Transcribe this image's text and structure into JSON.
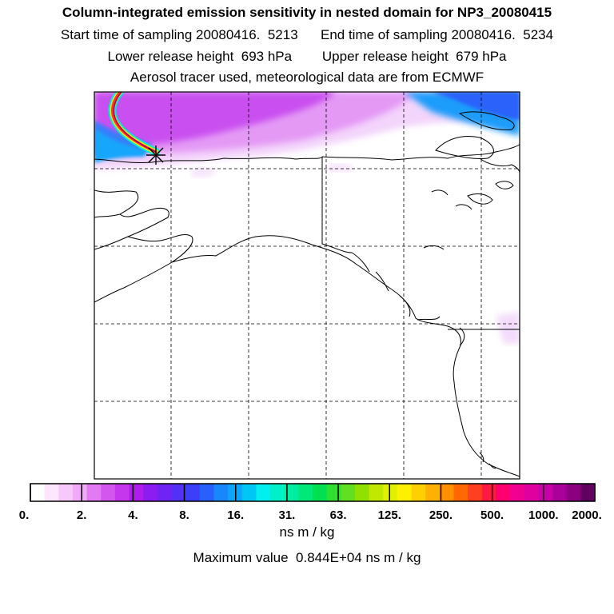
{
  "header": {
    "title": "Column-integrated emission sensitivity in nested domain for NP3_20080415",
    "line2": "Start time of sampling 20080416.  5213      End time of sampling 20080416.  5234",
    "line3": "Lower release height  693 hPa        Upper release height  679 hPa",
    "line4": "Aerosol tracer used, meteorological data are from ECMWF"
  },
  "colorbar": {
    "ticks": [
      "0.",
      "2.",
      "4.",
      "8.",
      "16.",
      "31.",
      "63.",
      "125.",
      "250.",
      "500.",
      "1000.",
      "2000."
    ],
    "colors": [
      "#ffffff",
      "#fde6fe",
      "#f7c8fb",
      "#f1a9f8",
      "#e27af2",
      "#d356ef",
      "#c537ec",
      "#b01ceb",
      "#8a1ef0",
      "#6f24f4",
      "#5330f7",
      "#3b3ff9",
      "#2960fb",
      "#1986fb",
      "#0ba6fb",
      "#00c6f5",
      "#00f0f0",
      "#00f0c8",
      "#00eca0",
      "#00e878",
      "#00e050",
      "#30e030",
      "#60e020",
      "#90e000",
      "#c0e800",
      "#e0f000",
      "#fff000",
      "#ffd000",
      "#ffb000",
      "#ff9000",
      "#ff6800",
      "#ff4020",
      "#ff1840",
      "#ff0070",
      "#f00090",
      "#e000a0",
      "#c800a8",
      "#a80098",
      "#880080",
      "#600060"
    ],
    "units": "ns m / kg",
    "max_label": "Maximum value  0.844E+04 ns m / kg"
  },
  "map": {
    "region": "Alaska / Western North America",
    "gridlines": "dashed",
    "release_marker": "asterisk"
  }
}
